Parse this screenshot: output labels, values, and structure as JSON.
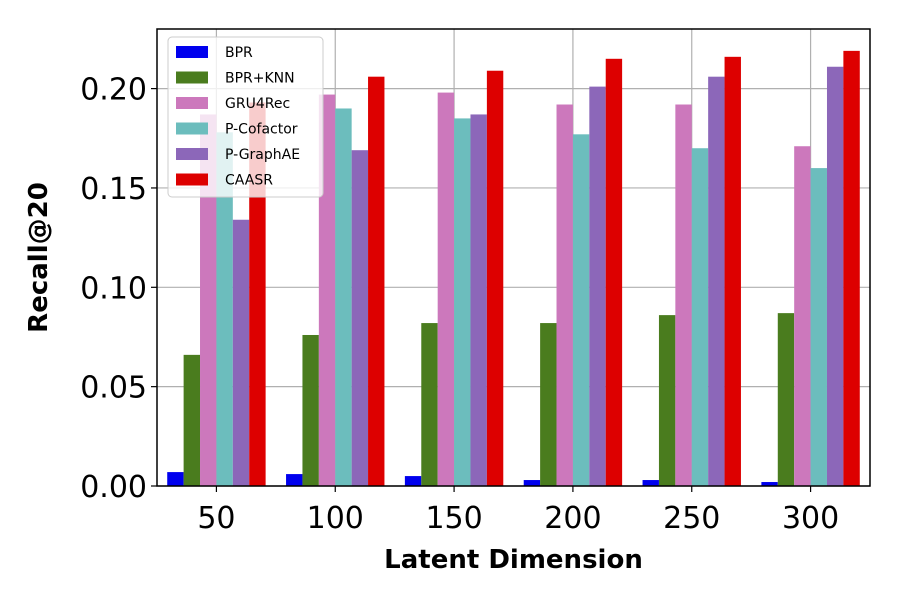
{
  "chart_data": {
    "type": "bar",
    "title": "",
    "xlabel": "Latent Dimension",
    "ylabel": "Recall@20",
    "categories": [
      "50",
      "100",
      "150",
      "200",
      "250",
      "300"
    ],
    "ylim": [
      0,
      0.23
    ],
    "yticks": [
      "0.00",
      "0.05",
      "0.10",
      "0.15",
      "0.20"
    ],
    "ytick_values": [
      0,
      0.05,
      0.1,
      0.15,
      0.2
    ],
    "grid": true,
    "legend_position": "top-left",
    "series": [
      {
        "name": "BPR",
        "color": "#0000ee",
        "values": [
          0.007,
          0.006,
          0.005,
          0.003,
          0.003,
          0.002
        ]
      },
      {
        "name": "BPR+KNN",
        "color": "#4a7c1e",
        "values": [
          0.066,
          0.076,
          0.082,
          0.082,
          0.086,
          0.087
        ]
      },
      {
        "name": "GRU4Rec",
        "color": "#cc78bc",
        "values": [
          0.187,
          0.197,
          0.198,
          0.192,
          0.192,
          0.171
        ]
      },
      {
        "name": "P-Cofactor",
        "color": "#6cbdbd",
        "values": [
          0.178,
          0.19,
          0.185,
          0.177,
          0.17,
          0.16
        ]
      },
      {
        "name": "P-GraphAE",
        "color": "#8c67b9",
        "values": [
          0.134,
          0.169,
          0.187,
          0.201,
          0.206,
          0.211
        ]
      },
      {
        "name": "CAASR",
        "color": "#dd0000",
        "values": [
          0.193,
          0.206,
          0.209,
          0.215,
          0.216,
          0.219
        ]
      }
    ]
  }
}
